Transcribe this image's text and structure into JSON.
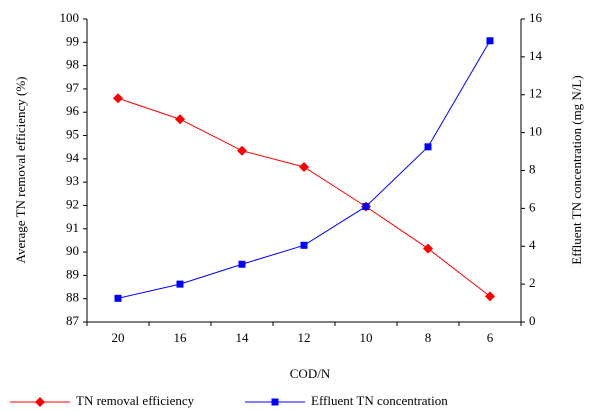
{
  "chart_data": {
    "type": "line",
    "x_label": "COD/N",
    "y_label": "Average TN removal efficiency (%)",
    "y2_label": "Effluent TN concentration (mg N/L)",
    "categories": [
      "20",
      "16",
      "14",
      "12",
      "10",
      "8",
      "6"
    ],
    "series": [
      {
        "name": "TN removal efficiency",
        "color": "#ff0000",
        "marker": "diamond",
        "values": [
          96.6,
          95.7,
          94.35,
          93.65,
          91.95,
          90.15,
          88.1
        ]
      },
      {
        "name": "Effluent TN concentration",
        "color": "#0000ff",
        "marker": "square",
        "axis": "y2",
        "values": [
          1.25,
          2.0,
          3.05,
          4.05,
          6.1,
          9.25,
          14.85
        ]
      }
    ],
    "ylim": [
      87,
      100
    ],
    "yticks": [
      87,
      88,
      89,
      90,
      91,
      92,
      93,
      94,
      95,
      96,
      97,
      98,
      99,
      100
    ],
    "y2lim": [
      0,
      16
    ],
    "y2ticks": [
      0,
      2,
      4,
      6,
      8,
      10,
      12,
      14,
      16
    ],
    "grid": false,
    "legend": "bottom"
  }
}
